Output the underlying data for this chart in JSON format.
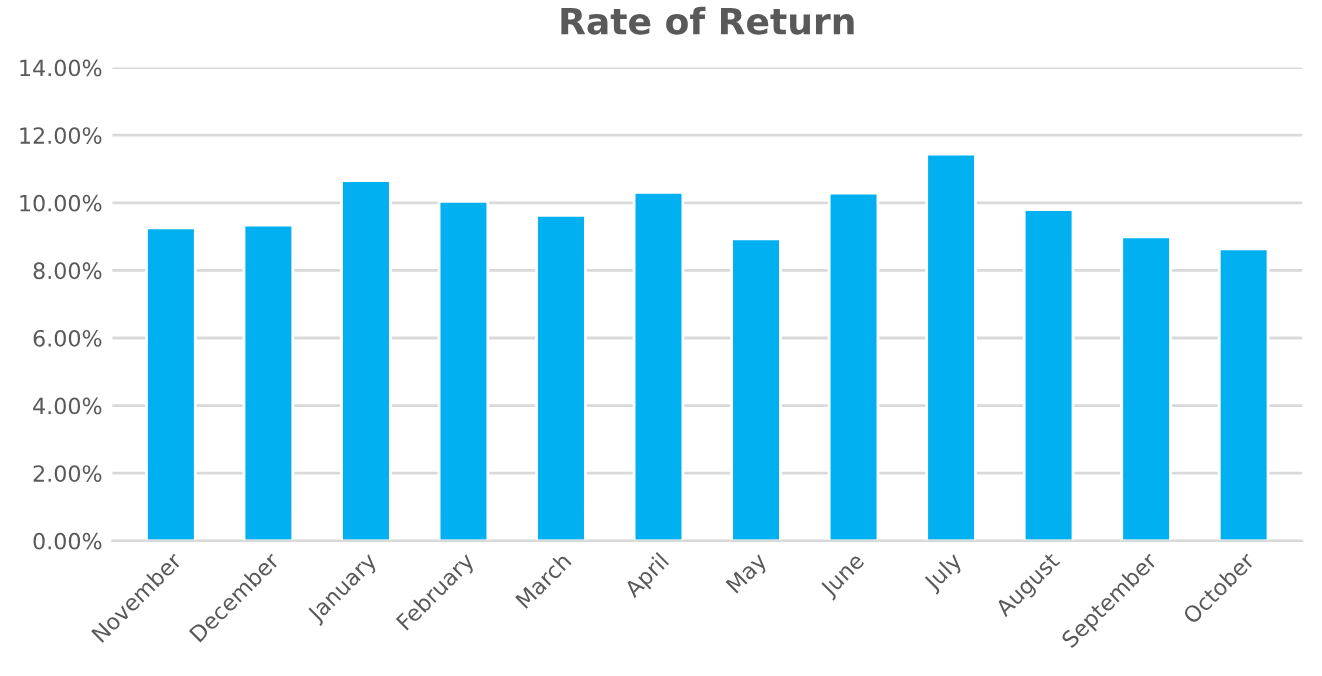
{
  "chart_data": {
    "type": "bar",
    "title": "Rate of Return",
    "categories": [
      "November",
      "December",
      "January",
      "February",
      "March",
      "April",
      "May",
      "June",
      "July",
      "August",
      "September",
      "October"
    ],
    "values": [
      9.26,
      9.34,
      10.66,
      10.04,
      9.63,
      10.31,
      8.93,
      10.29,
      11.44,
      9.8,
      8.99,
      8.64
    ],
    "color": "#00b0f0",
    "ylim": [
      0,
      14
    ],
    "yticks": [
      {
        "value": 0,
        "label": "0.00%"
      },
      {
        "value": 2,
        "label": "2.00%"
      },
      {
        "value": 4,
        "label": "4.00%"
      },
      {
        "value": 6,
        "label": "6.00%"
      },
      {
        "value": 8,
        "label": "8.00%"
      },
      {
        "value": 10,
        "label": "10.00%"
      },
      {
        "value": 12,
        "label": "12.00%"
      },
      {
        "value": 14,
        "label": "14.00%"
      }
    ],
    "grid": "y",
    "legend": false
  }
}
